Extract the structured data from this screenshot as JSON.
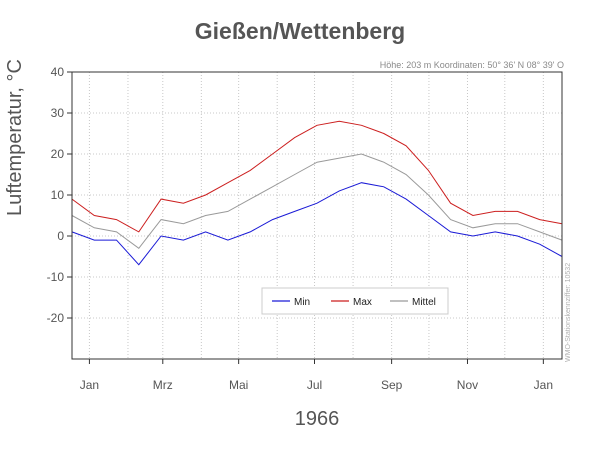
{
  "chart_data": {
    "type": "line",
    "title": "Gießen/Wettenberg",
    "subtitle": "Höhe: 203 m   Koordinaten: 50° 36' N  08° 39' O",
    "side_note": "WMO-Stationskennziffer: 10532",
    "xlabel": "1966",
    "ylabel": "Luftemperatur, °C",
    "ylim": [
      -30,
      40
    ],
    "yticks": [
      -20,
      -10,
      0,
      10,
      20,
      30,
      40
    ],
    "xticks": [
      {
        "day": 15,
        "label": "Jan"
      },
      {
        "day": 74,
        "label": "Mrz"
      },
      {
        "day": 135,
        "label": "Mai"
      },
      {
        "day": 196,
        "label": "Jul"
      },
      {
        "day": 258,
        "label": "Sep"
      },
      {
        "day": 319,
        "label": "Nov"
      },
      {
        "day": 380,
        "label": "Jan"
      }
    ],
    "x_range_days": [
      1,
      395
    ],
    "grid": true,
    "legend_position": "bottom-center",
    "x_monthly_mid": [
      15,
      46,
      74,
      105,
      135,
      166,
      196,
      227,
      258,
      288,
      319,
      349,
      380,
      395
    ],
    "series": [
      {
        "name": "Min",
        "color": "#1a1ad6",
        "values": [
          1,
          -1,
          -1,
          -7,
          0,
          -1,
          1,
          -1,
          1,
          4,
          6,
          8,
          11,
          13,
          12,
          9,
          5,
          1,
          0,
          1,
          0,
          -2,
          -5
        ]
      },
      {
        "name": "Max",
        "color": "#cc1f1f",
        "values": [
          9,
          5,
          4,
          1,
          9,
          8,
          10,
          13,
          16,
          20,
          24,
          27,
          28,
          27,
          25,
          22,
          16,
          8,
          5,
          6,
          6,
          4,
          3
        ]
      },
      {
        "name": "Mittel",
        "color": "#9a9a9a",
        "values": [
          5,
          2,
          1,
          -3,
          4,
          3,
          5,
          6,
          9,
          12,
          15,
          18,
          19,
          20,
          18,
          15,
          10,
          4,
          2,
          3,
          3,
          1,
          -1
        ]
      }
    ]
  }
}
